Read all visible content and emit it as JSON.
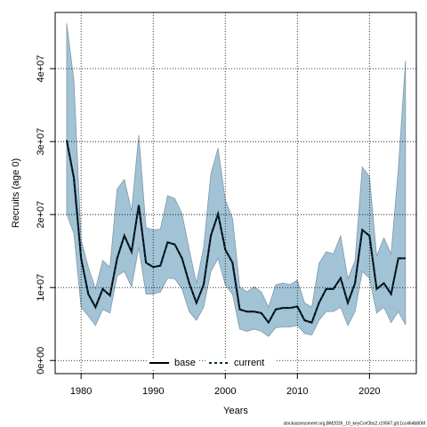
{
  "chart_data": {
    "type": "line",
    "x_label": "Years",
    "y_label": "Recruits (age 0)",
    "footer": "stockassessment.org,BM2026_10_keyCorObs2,r19567,git:1cc464b806f",
    "x": [
      1978,
      1979,
      1980,
      1981,
      1982,
      1983,
      1984,
      1985,
      1986,
      1987,
      1988,
      1989,
      1990,
      1991,
      1992,
      1993,
      1994,
      1995,
      1996,
      1997,
      1998,
      1999,
      2000,
      2001,
      2002,
      2003,
      2004,
      2005,
      2006,
      2007,
      2008,
      2009,
      2010,
      2011,
      2012,
      2013,
      2014,
      2015,
      2016,
      2017,
      2018,
      2019,
      2020,
      2021,
      2022,
      2023,
      2024,
      2025
    ],
    "band": {
      "color": "#a2c3d5",
      "edge_color": "#7f99a8",
      "upper": [
        46200000,
        38400000,
        16500000,
        12800000,
        9800000,
        13700000,
        12800000,
        23500000,
        24800000,
        20500000,
        30900000,
        18200000,
        17900000,
        18000000,
        22600000,
        22200000,
        20100000,
        15200000,
        10600000,
        15500000,
        25600000,
        29100000,
        22000000,
        19500000,
        10100000,
        9400000,
        10100000,
        9400000,
        7300000,
        10400000,
        10600000,
        10400000,
        11000000,
        7900000,
        7300000,
        13300000,
        14900000,
        14600000,
        17100000,
        11200000,
        13700000,
        26500000,
        25200000,
        14300000,
        16800000,
        14600000,
        26200000,
        41100000
      ],
      "lower": [
        20100000,
        17400000,
        7300000,
        6100000,
        4800000,
        7000000,
        6500000,
        11600000,
        12200000,
        10100000,
        15500000,
        9100000,
        9100000,
        9400000,
        11300000,
        11200000,
        9800000,
        6700000,
        5500000,
        7300000,
        12200000,
        14000000,
        10400000,
        9100000,
        4300000,
        4000000,
        4300000,
        4000000,
        3300000,
        4500000,
        4600000,
        4600000,
        4800000,
        3700000,
        3500000,
        5500000,
        6700000,
        6700000,
        7300000,
        4800000,
        6700000,
        12200000,
        11300000,
        6500000,
        7300000,
        5200000,
        6700000,
        4900000
      ]
    },
    "series": [
      {
        "name": "base",
        "color": "#000000",
        "dashed": false,
        "values": [
          30200000,
          25000000,
          14000000,
          9100000,
          7300000,
          9800000,
          8900000,
          14000000,
          17100000,
          14900000,
          21300000,
          13400000,
          12800000,
          13000000,
          16200000,
          15900000,
          14000000,
          10600000,
          7900000,
          10400000,
          17100000,
          20100000,
          15200000,
          13400000,
          7000000,
          6700000,
          6700000,
          6500000,
          5200000,
          7000000,
          7200000,
          7200000,
          7400000,
          5500000,
          5200000,
          7900000,
          9800000,
          9800000,
          11300000,
          7900000,
          10600000,
          17900000,
          17100000,
          9800000,
          10600000,
          9100000,
          14000000,
          14000000
        ]
      },
      {
        "name": "current",
        "color": "#0b2b3c",
        "dashed": true,
        "values": [
          30200000,
          25000000,
          14000000,
          9100000,
          7300000,
          9800000,
          8900000,
          14000000,
          17100000,
          14900000,
          21300000,
          13400000,
          12800000,
          13000000,
          16200000,
          15900000,
          14000000,
          10600000,
          7900000,
          10400000,
          17100000,
          20100000,
          15200000,
          13400000,
          7000000,
          6700000,
          6700000,
          6500000,
          5200000,
          7000000,
          7200000,
          7200000,
          7400000,
          5500000,
          5200000,
          7900000,
          9800000,
          9800000,
          11300000,
          7900000,
          10600000,
          17900000,
          17100000,
          9800000,
          10600000,
          9100000,
          14000000,
          14000000
        ]
      }
    ],
    "xlim": [
      1976.4,
      2026.5
    ],
    "xticks": [
      1980,
      1990,
      2000,
      2010,
      2020
    ],
    "ylim": [
      -1800000,
      47700000
    ],
    "yticks": [
      {
        "value": 0,
        "label": "0e+00"
      },
      {
        "value": 10000000,
        "label": "1e+07"
      },
      {
        "value": 20000000,
        "label": "2e+07"
      },
      {
        "value": 30000000,
        "label": "3e+07"
      },
      {
        "value": 40000000,
        "label": "4e+07"
      }
    ],
    "grid": true,
    "legend": "bottom"
  }
}
